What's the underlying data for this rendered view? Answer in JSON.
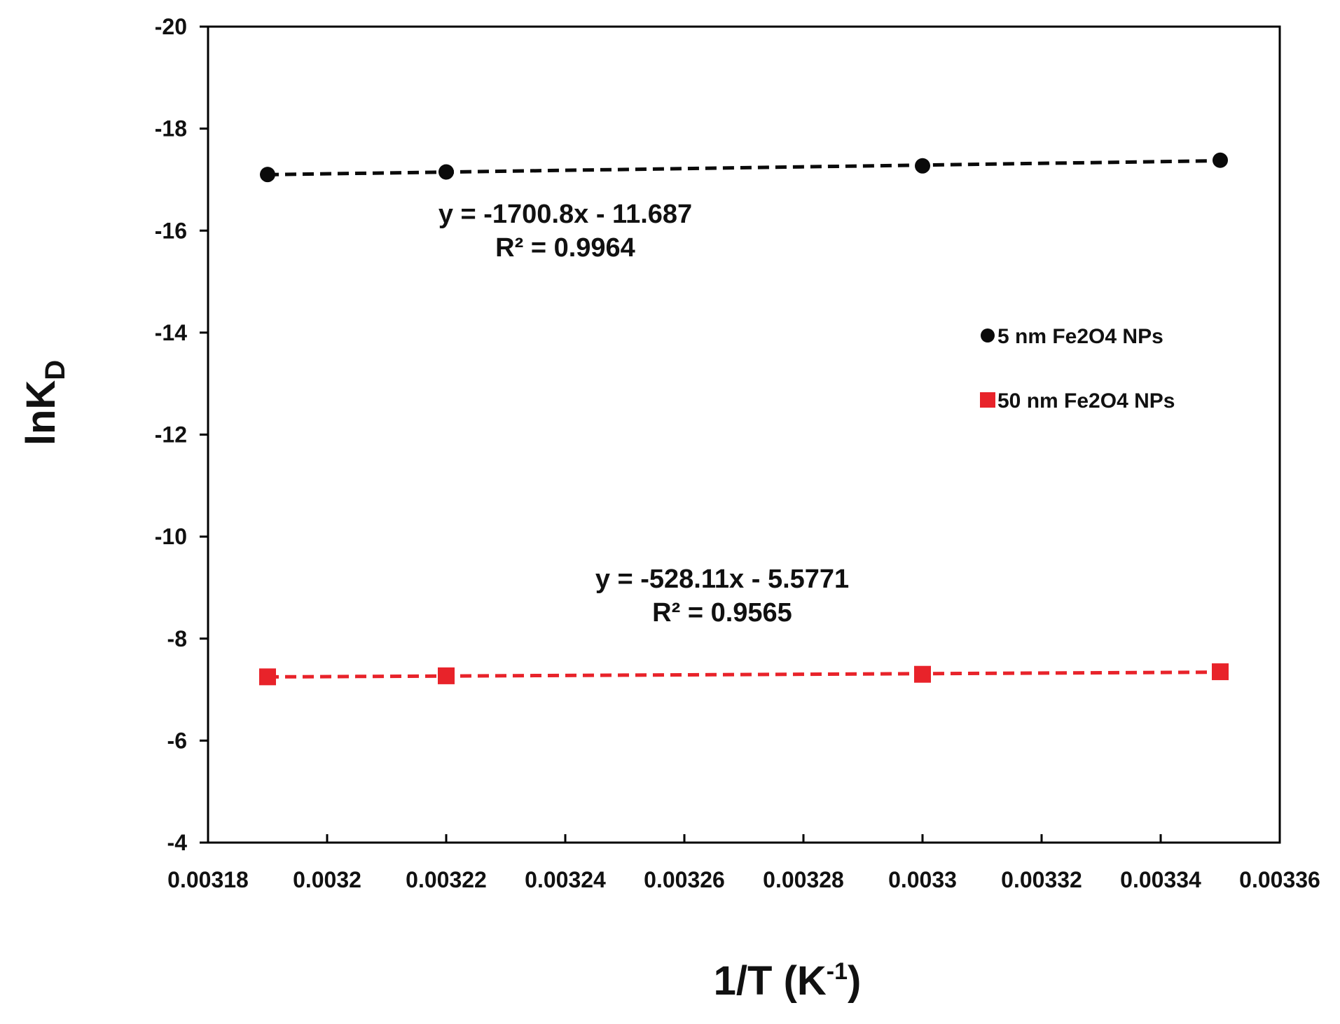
{
  "chart_data": {
    "type": "scatter",
    "title": "",
    "xlabel": "1/T (K-1)",
    "xlabel_parts": {
      "base": "1/T (K",
      "sup": "-1",
      "close": ")"
    },
    "ylabel": "lnKD",
    "ylabel_parts": {
      "base": "lnK",
      "sub": "D"
    },
    "xlim": [
      0.00318,
      0.00336
    ],
    "ylim": [
      -4,
      -20
    ],
    "y_inverted": true,
    "grid": false,
    "x_ticks": [
      0.00318,
      0.0032,
      0.00322,
      0.00324,
      0.00326,
      0.00328,
      0.0033,
      0.00332,
      0.00334,
      0.00336
    ],
    "x_tick_labels": [
      "0.00318",
      "0.0032",
      "0.00322",
      "0.00324",
      "0.00326",
      "0.00328",
      "0.0033",
      "0.00332",
      "0.00334",
      "0.00336"
    ],
    "y_ticks": [
      -4,
      -6,
      -8,
      -10,
      -12,
      -14,
      -16,
      -18,
      -20
    ],
    "y_tick_labels": [
      "-4",
      "-6",
      "-8",
      "-10",
      "-12",
      "-14",
      "-16",
      "-18",
      "-20"
    ],
    "legend_position": "right",
    "series": [
      {
        "name": "5 nm Fe2O4 NPs",
        "marker": "circle",
        "color": "#0a0a0a",
        "x": [
          0.00319,
          0.00322,
          0.0033,
          0.00335
        ],
        "y": [
          -17.1,
          -17.15,
          -17.27,
          -17.38
        ],
        "trendline": {
          "style": "dashed",
          "x_range": [
            0.00319,
            0.00335
          ]
        },
        "equation": "y = -1700.8x - 11.687",
        "r_squared": "R² = 0.9964"
      },
      {
        "name": "50 nm Fe2O4 NPs",
        "marker": "square",
        "color": "#e8232a",
        "x": [
          0.00319,
          0.00322,
          0.0033,
          0.00335
        ],
        "y": [
          -7.25,
          -7.27,
          -7.3,
          -7.35
        ],
        "trendline": {
          "style": "dashed",
          "x_range": [
            0.00319,
            0.00335
          ]
        },
        "equation": "y = -528.11x - 5.5771",
        "r_squared": "R² = 0.9565"
      }
    ]
  }
}
